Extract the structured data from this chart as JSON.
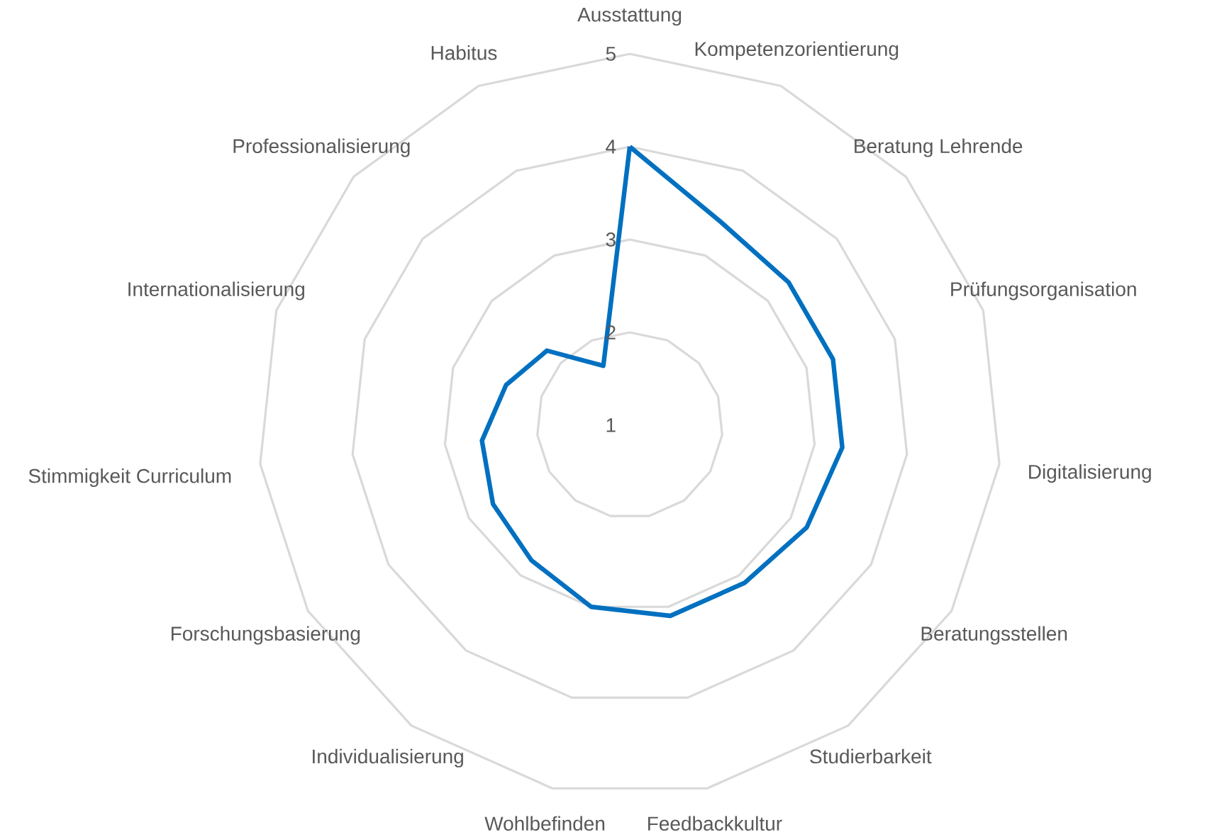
{
  "chart_data": {
    "type": "radar",
    "categories": [
      "Ausstattung",
      "Kompetenzorientierung",
      "Beratung Lehrende",
      "Prüfungsorganisation",
      "Digitalisierung",
      "Beratungsstellen",
      "Studierbarkeit",
      "Feedbackkultur",
      "Wohlbefinden",
      "Individualisierung",
      "Forschungsbasierung",
      "Stimmigkeit Curriculum",
      "Internationalisierung",
      "Professionalisierung",
      "Habitus"
    ],
    "series": [
      {
        "color": "#0070c0",
        "values": [
          4.0,
          3.4,
          3.3,
          3.3,
          3.3,
          3.2,
          3.1,
          3.1,
          3.0,
          2.8,
          2.7,
          2.6,
          2.4,
          2.2,
          1.7
        ]
      }
    ],
    "ylim": [
      1,
      5
    ],
    "yticks": [
      1,
      2,
      3,
      4,
      5
    ],
    "grid": true
  }
}
